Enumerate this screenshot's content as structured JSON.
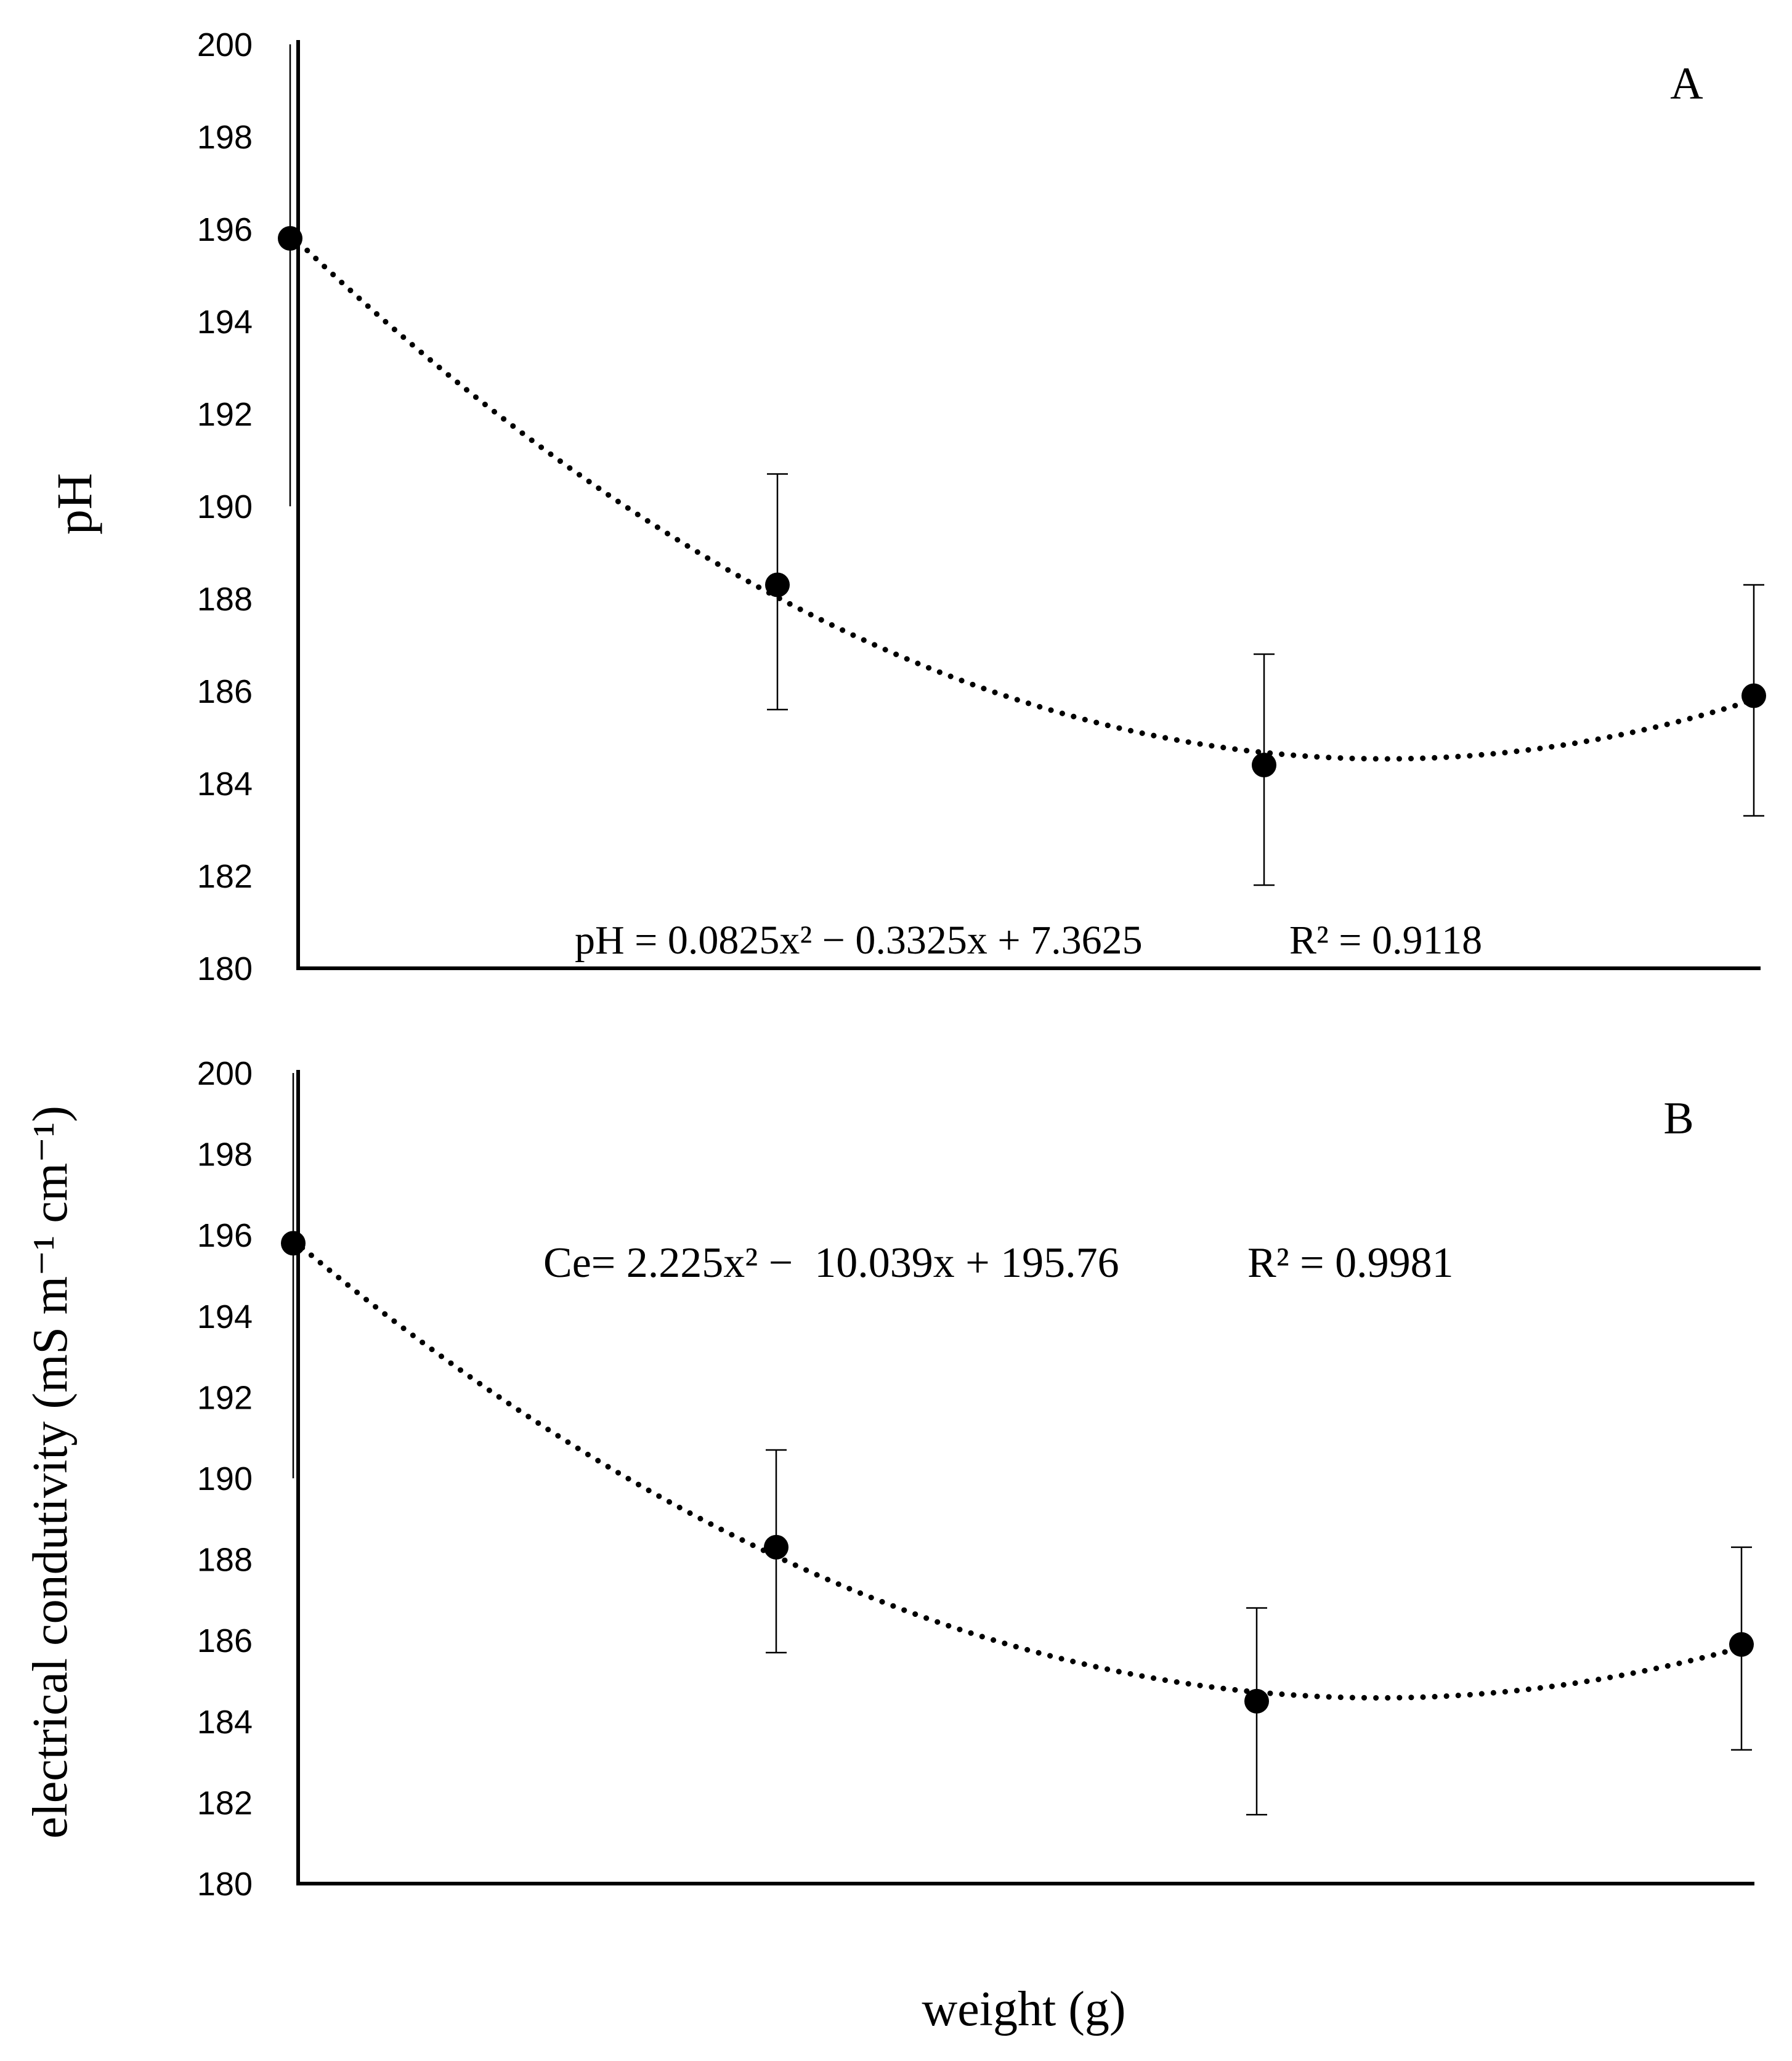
{
  "chart_data": [
    {
      "panel": "A",
      "type": "scatter",
      "panel_label": "A",
      "ylabel": "pH",
      "xlabel": "",
      "ylim": [
        180,
        200
      ],
      "yticks": [
        180,
        182,
        184,
        186,
        188,
        190,
        192,
        194,
        196,
        198,
        200
      ],
      "x": [
        1,
        2,
        3,
        4
      ],
      "series": [
        {
          "name": "pH",
          "values": [
            195.8,
            188.3,
            184.4,
            185.9
          ],
          "error_low": [
            190.0,
            185.6,
            181.8,
            183.3
          ],
          "error_high": [
            200.0,
            190.7,
            186.8,
            188.3
          ]
        }
      ],
      "trendline": {
        "type": "polynomial",
        "order": 2
      },
      "equation": "pH = 0.0825x² − 0.3325x + 7.3625",
      "r2": "R² = 0.9118"
    },
    {
      "panel": "B",
      "type": "scatter",
      "panel_label": "B",
      "ylabel": "electrical condutivity (mS m⁻¹ cm⁻¹)",
      "xlabel": "weight (g)",
      "ylim": [
        180,
        200
      ],
      "yticks": [
        180,
        182,
        184,
        186,
        188,
        190,
        192,
        194,
        196,
        198,
        200
      ],
      "x": [
        1,
        2,
        3,
        4
      ],
      "series": [
        {
          "name": "Ce",
          "values": [
            195.8,
            188.3,
            184.5,
            185.9
          ],
          "error_low": [
            190.0,
            185.7,
            181.7,
            183.3
          ],
          "error_high": [
            200.0,
            190.7,
            186.8,
            188.3
          ]
        }
      ],
      "trendline": {
        "type": "polynomial",
        "order": 2
      },
      "equation": "Ce= 2.225x² −  10.039x + 195.76",
      "r2": "R² = 0.9981"
    }
  ]
}
